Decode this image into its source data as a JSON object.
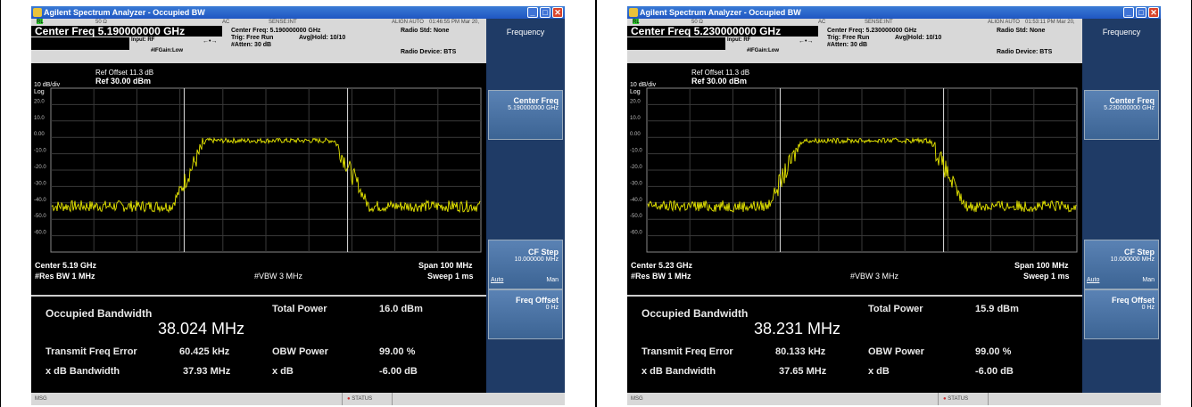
{
  "panels": [
    {
      "window_title": "Agilent Spectrum Analyzer - Occupied BW",
      "status": {
        "rl": "RL",
        "ohm": "50 Ω",
        "ac": "AC",
        "sense": "SENSE:INT",
        "align": "ALIGN AUTO",
        "time": "01:46:55 PM Mar 20, 2023"
      },
      "center_freq_title": "Center Freq 5.190000000 GHz",
      "input": "Input: RF",
      "ifgain": "#IFGain:Low",
      "cf_line": "Center Freq: 5.190000000 GHz",
      "trig": "Trig: Free Run",
      "avg": "Avg|Hold: 10/10",
      "atten": "#Atten: 30 dB",
      "radio_std": "Radio Std: None",
      "radio_dev": "Radio Device: BTS",
      "ref_offset": "Ref Offset 11.3 dB",
      "ref_level": "Ref 30.00 dBm",
      "scale": "10 dB/div",
      "log": "Log",
      "ylabels": [
        "20.0",
        "10.0",
        "0.00",
        "-10.0",
        "-20.0",
        "-30.0",
        "-40.0",
        "-50.0",
        "-60.0"
      ],
      "center": "Center 5.19 GHz",
      "res_bw": "#Res BW 1 MHz",
      "vbw": "#VBW 3 MHz",
      "span": "Span 100 MHz",
      "sweep": "Sweep 1 ms",
      "obw_label": "Occupied Bandwidth",
      "obw_value": "38.024 MHz",
      "total_power_label": "Total Power",
      "total_power": "16.0 dBm",
      "tfe_label": "Transmit Freq Error",
      "tfe": "60.425 kHz",
      "obw_power_label": "OBW Power",
      "obw_power": "99.00 %",
      "xdb_bw_label": "x dB Bandwidth",
      "xdb_bw": "37.93 MHz",
      "xdb_label": "x dB",
      "xdb": "-6.00 dB",
      "softkeys": {
        "frequency": "Frequency",
        "center_freq": "Center Freq",
        "center_freq_val": "5.190000000 GHz",
        "cf_step": "CF Step",
        "cf_step_val": "10.000000 MHz",
        "auto": "Auto",
        "man": "Man",
        "freq_offset": "Freq Offset",
        "freq_offset_val": "0 Hz"
      },
      "msg": "MSG",
      "statusbar": "STATUS",
      "trace_color": "#e6e600"
    },
    {
      "window_title": "Agilent Spectrum Analyzer - Occupied BW",
      "status": {
        "rl": "RL",
        "ohm": "50 Ω",
        "ac": "AC",
        "sense": "SENSE:INT",
        "align": "ALIGN AUTO",
        "time": "01:53:11 PM Mar 20, 2023"
      },
      "center_freq_title": "Center Freq 5.230000000 GHz",
      "input": "Input: RF",
      "ifgain": "#IFGain:Low",
      "cf_line": "Center Freq: 5.230000000 GHz",
      "trig": "Trig: Free Run",
      "avg": "Avg|Hold: 10/10",
      "atten": "#Atten: 30 dB",
      "radio_std": "Radio Std: None",
      "radio_dev": "Radio Device: BTS",
      "ref_offset": "Ref Offset 11.3 dB",
      "ref_level": "Ref 30.00 dBm",
      "scale": "10 dB/div",
      "log": "Log",
      "ylabels": [
        "20.0",
        "10.0",
        "0.00",
        "-10.0",
        "-20.0",
        "-30.0",
        "-40.0",
        "-50.0",
        "-60.0"
      ],
      "center": "Center 5.23 GHz",
      "res_bw": "#Res BW 1 MHz",
      "vbw": "#VBW 3 MHz",
      "span": "Span 100 MHz",
      "sweep": "Sweep 1 ms",
      "obw_label": "Occupied Bandwidth",
      "obw_value": "38.231 MHz",
      "total_power_label": "Total Power",
      "total_power": "15.9 dBm",
      "tfe_label": "Transmit Freq Error",
      "tfe": "80.133 kHz",
      "obw_power_label": "OBW Power",
      "obw_power": "99.00 %",
      "xdb_bw_label": "x dB Bandwidth",
      "xdb_bw": "37.65 MHz",
      "xdb_label": "x dB",
      "xdb": "-6.00 dB",
      "softkeys": {
        "frequency": "Frequency",
        "center_freq": "Center Freq",
        "center_freq_val": "5.230000000 GHz",
        "cf_step": "CF Step",
        "cf_step_val": "10.000000 MHz",
        "auto": "Auto",
        "man": "Man",
        "freq_offset": "Freq Offset",
        "freq_offset_val": "0 Hz"
      },
      "msg": "MSG",
      "statusbar": "STATUS",
      "trace_color": "#e6e600"
    }
  ]
}
